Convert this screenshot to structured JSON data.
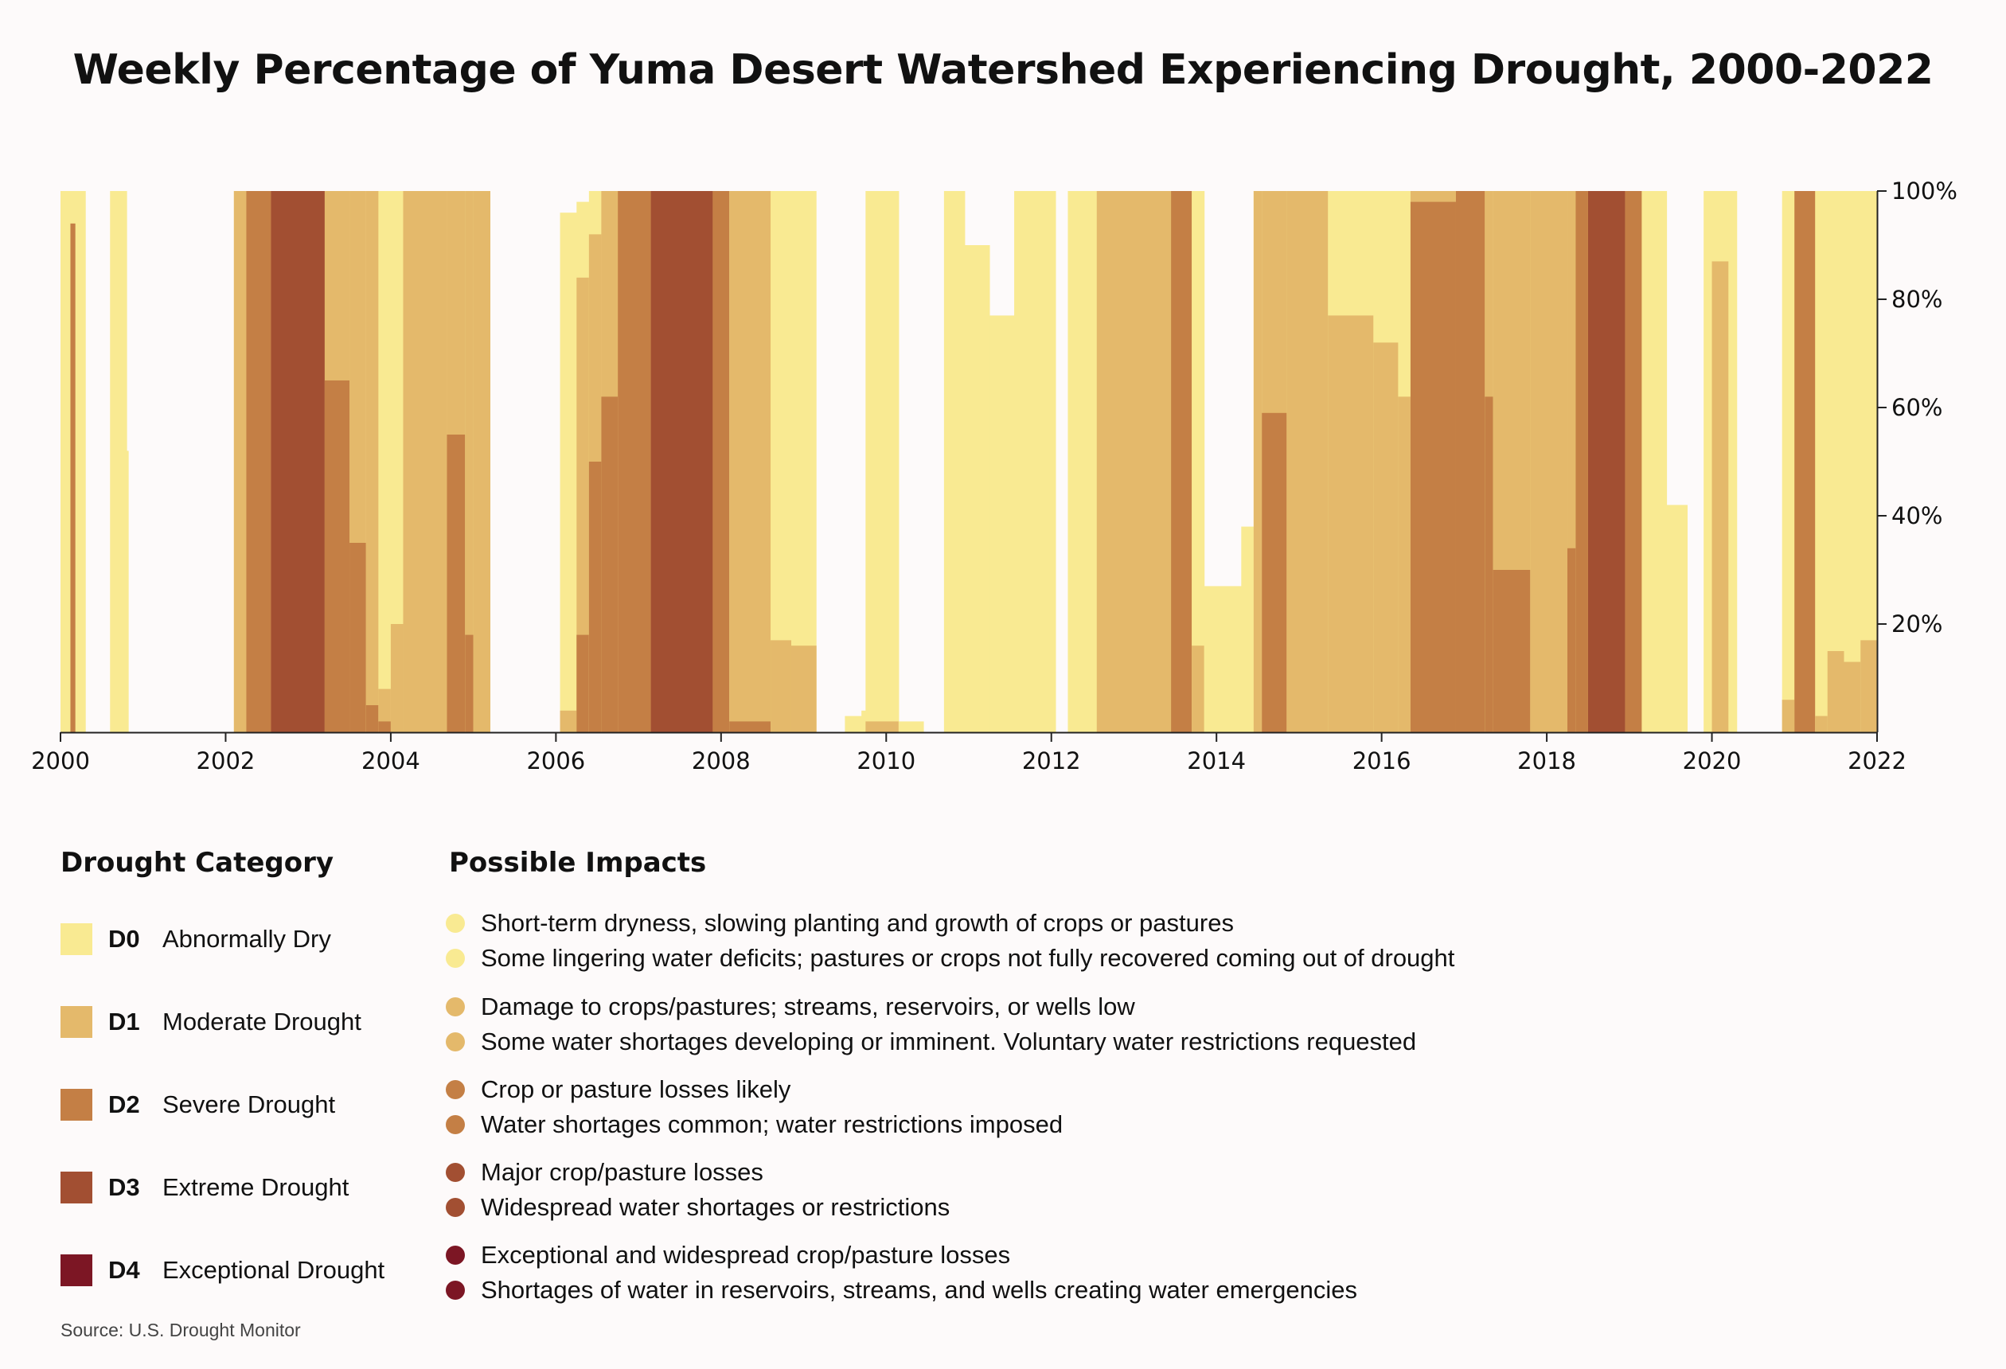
{
  "title": "Weekly Percentage of Yuma Desert Watershed Experiencing Drought, 2000-2022",
  "colors": {
    "D0": "#f9ea92",
    "D1": "#e4b96b",
    "D2": "#c47f45",
    "D3": "#a24f32",
    "D4": "#7c1624",
    "axis": "#222222"
  },
  "chart_data": {
    "type": "area",
    "title": "Weekly Percentage of Yuma Desert Watershed Experiencing Drought, 2000-2022",
    "xlabel": "",
    "ylabel": "",
    "xlim": [
      2000,
      2022
    ],
    "ylim": [
      0,
      100
    ],
    "x_ticks": [
      2000,
      2002,
      2004,
      2006,
      2008,
      2010,
      2012,
      2014,
      2016,
      2018,
      2020,
      2022
    ],
    "x_tick_labels": [
      "2000",
      "2002",
      "2004",
      "2006",
      "2008",
      "2010",
      "2012",
      "2014",
      "2016",
      "2018",
      "2020",
      "2022"
    ],
    "y_ticks": [
      20,
      40,
      60,
      80,
      100
    ],
    "y_tick_labels": [
      "20%",
      "40%",
      "60%",
      "80%",
      "100%"
    ],
    "y_axis_side": "right",
    "grid": false,
    "note": "Each segment: [start_year, end_year, percent in D0-D4 (any drought), percent in D1-D4, percent in D2-D4, percent in D3-D4, percent in D4] — cumulative, stacked from the bottom.",
    "segments": [
      [
        2000.0,
        2000.12,
        100,
        0,
        0,
        0,
        0
      ],
      [
        2000.12,
        2000.18,
        100,
        0,
        94,
        0,
        0
      ],
      [
        2000.18,
        2000.3,
        100,
        0,
        0,
        0,
        0
      ],
      [
        2000.6,
        2000.8,
        100,
        0,
        0,
        0,
        0
      ],
      [
        2000.8,
        2000.82,
        52,
        0,
        0,
        0,
        0
      ],
      [
        2002.1,
        2002.25,
        100,
        100,
        0,
        0,
        0
      ],
      [
        2002.25,
        2002.55,
        100,
        100,
        100,
        0,
        0
      ],
      [
        2002.55,
        2003.2,
        100,
        100,
        100,
        100,
        0
      ],
      [
        2003.2,
        2003.5,
        100,
        100,
        65,
        0,
        0
      ],
      [
        2003.5,
        2003.7,
        100,
        100,
        35,
        0,
        0
      ],
      [
        2003.7,
        2003.85,
        100,
        100,
        5,
        0,
        0
      ],
      [
        2003.85,
        2004.0,
        100,
        8,
        2,
        0,
        0
      ],
      [
        2004.0,
        2004.15,
        100,
        20,
        0,
        0,
        0
      ],
      [
        2004.15,
        2004.68,
        100,
        100,
        0,
        0,
        0
      ],
      [
        2004.68,
        2004.9,
        100,
        100,
        55,
        0,
        0
      ],
      [
        2004.9,
        2005.0,
        100,
        100,
        18,
        0,
        0
      ],
      [
        2005.0,
        2005.2,
        100,
        100,
        0,
        0,
        0
      ],
      [
        2006.05,
        2006.25,
        96,
        4,
        0,
        0,
        0
      ],
      [
        2006.25,
        2006.4,
        98,
        84,
        18,
        0,
        0
      ],
      [
        2006.4,
        2006.55,
        100,
        92,
        50,
        0,
        0
      ],
      [
        2006.55,
        2006.75,
        100,
        100,
        62,
        0,
        0
      ],
      [
        2006.75,
        2007.15,
        100,
        100,
        100,
        0,
        0
      ],
      [
        2007.15,
        2007.9,
        100,
        100,
        100,
        100,
        0
      ],
      [
        2007.9,
        2008.1,
        100,
        100,
        100,
        0,
        0
      ],
      [
        2008.1,
        2008.6,
        100,
        100,
        2,
        0,
        0
      ],
      [
        2008.6,
        2008.85,
        100,
        17,
        0,
        0,
        0
      ],
      [
        2008.85,
        2009.15,
        100,
        16,
        0,
        0,
        0
      ],
      [
        2009.5,
        2009.7,
        3,
        0,
        0,
        0,
        0
      ],
      [
        2009.7,
        2009.75,
        4,
        0,
        0,
        0,
        0
      ],
      [
        2009.75,
        2010.15,
        100,
        2,
        0,
        0,
        0
      ],
      [
        2010.15,
        2010.45,
        2,
        0,
        0,
        0,
        0
      ],
      [
        2010.7,
        2010.95,
        100,
        0,
        0,
        0,
        0
      ],
      [
        2010.95,
        2011.25,
        90,
        0,
        0,
        0,
        0
      ],
      [
        2011.25,
        2011.55,
        77,
        0,
        0,
        0,
        0
      ],
      [
        2011.55,
        2012.05,
        100,
        0,
        0,
        0,
        0
      ],
      [
        2012.2,
        2012.55,
        100,
        0,
        0,
        0,
        0
      ],
      [
        2012.55,
        2013.45,
        100,
        100,
        0,
        0,
        0
      ],
      [
        2013.45,
        2013.7,
        100,
        100,
        100,
        0,
        0
      ],
      [
        2013.7,
        2013.85,
        100,
        16,
        0,
        0,
        0
      ],
      [
        2013.85,
        2014.3,
        27,
        0,
        0,
        0,
        0
      ],
      [
        2014.3,
        2014.45,
        38,
        0,
        0,
        0,
        0
      ],
      [
        2014.45,
        2014.55,
        100,
        100,
        0,
        0,
        0
      ],
      [
        2014.55,
        2014.85,
        100,
        100,
        59,
        0,
        0
      ],
      [
        2014.85,
        2015.35,
        100,
        100,
        0,
        0,
        0
      ],
      [
        2015.35,
        2015.9,
        100,
        77,
        0,
        0,
        0
      ],
      [
        2015.9,
        2016.2,
        100,
        72,
        0,
        0,
        0
      ],
      [
        2016.2,
        2016.35,
        100,
        62,
        0,
        0,
        0
      ],
      [
        2016.35,
        2016.9,
        100,
        100,
        98,
        0,
        0
      ],
      [
        2016.9,
        2017.25,
        100,
        100,
        100,
        0,
        0
      ],
      [
        2017.25,
        2017.35,
        100,
        100,
        62,
        0,
        0
      ],
      [
        2017.35,
        2017.8,
        100,
        100,
        30,
        0,
        0
      ],
      [
        2017.8,
        2018.25,
        100,
        100,
        0,
        0,
        0
      ],
      [
        2018.25,
        2018.35,
        100,
        100,
        34,
        0,
        0
      ],
      [
        2018.35,
        2018.5,
        100,
        100,
        100,
        0,
        0
      ],
      [
        2018.5,
        2018.95,
        100,
        100,
        100,
        100,
        0
      ],
      [
        2018.95,
        2019.15,
        100,
        100,
        100,
        0,
        0
      ],
      [
        2019.15,
        2019.45,
        100,
        0,
        0,
        0,
        0
      ],
      [
        2019.45,
        2019.7,
        42,
        0,
        0,
        0,
        0
      ],
      [
        2019.9,
        2020.0,
        100,
        0,
        0,
        0,
        0
      ],
      [
        2020.0,
        2020.2,
        100,
        87,
        0,
        0,
        0
      ],
      [
        2020.2,
        2020.3,
        100,
        0,
        0,
        0,
        0
      ],
      [
        2020.85,
        2021.0,
        100,
        6,
        0,
        0,
        0
      ],
      [
        2021.0,
        2021.25,
        100,
        100,
        100,
        0,
        0
      ],
      [
        2021.25,
        2021.4,
        100,
        3,
        0,
        0,
        0
      ],
      [
        2021.4,
        2021.6,
        100,
        15,
        0,
        0,
        0
      ],
      [
        2021.6,
        2021.8,
        100,
        13,
        0,
        0,
        0
      ],
      [
        2021.8,
        2022.0,
        100,
        17,
        0,
        0,
        0
      ]
    ]
  },
  "legend": {
    "category_heading": "Drought Category",
    "impacts_heading": "Possible Impacts",
    "categories": [
      {
        "code": "D0",
        "label": "Abnormally Dry",
        "color": "#f9ea92",
        "impacts": [
          "Short-term dryness, slowing planting and growth of crops or pastures",
          "Some lingering water deficits; pastures or crops not fully recovered coming out of drought"
        ]
      },
      {
        "code": "D1",
        "label": "Moderate Drought",
        "color": "#e4b96b",
        "impacts": [
          "Damage to crops/pastures; streams, reservoirs, or wells low",
          "Some water shortages developing or imminent. Voluntary water restrictions requested"
        ]
      },
      {
        "code": "D2",
        "label": "Severe Drought",
        "color": "#c47f45",
        "impacts": [
          "Crop or pasture losses likely",
          "Water shortages common; water restrictions imposed"
        ]
      },
      {
        "code": "D3",
        "label": "Extreme Drought",
        "color": "#a24f32",
        "impacts": [
          "Major crop/pasture losses",
          "Widespread water shortages or restrictions"
        ]
      },
      {
        "code": "D4",
        "label": "Exceptional Drought",
        "color": "#7c1624",
        "impacts": [
          "Exceptional and widespread crop/pasture losses",
          "Shortages of water in reservoirs, streams, and wells creating water emergencies"
        ]
      }
    ]
  },
  "source": "Source: U.S. Drought Monitor"
}
